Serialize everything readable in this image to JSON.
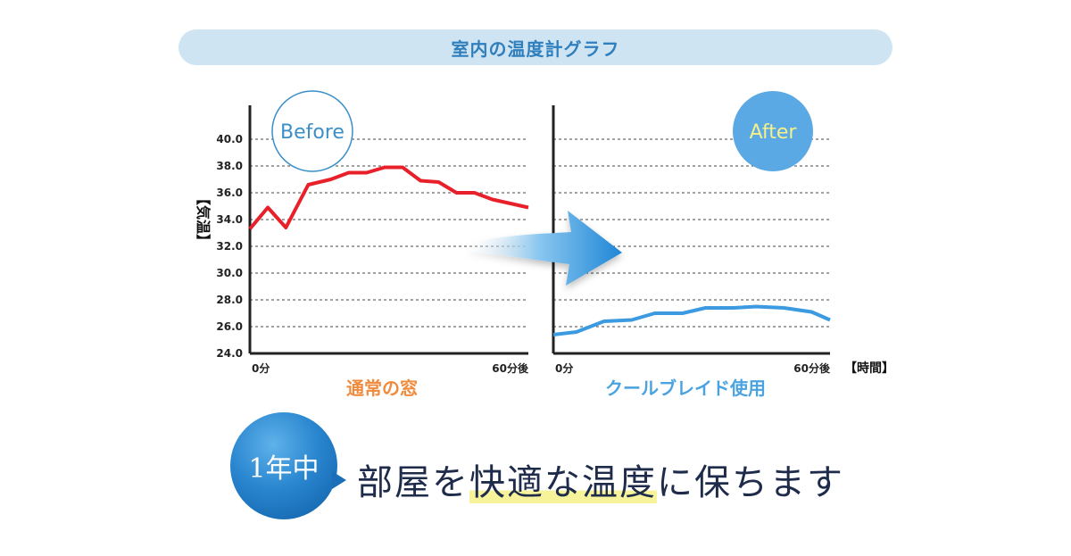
{
  "banner": {
    "title": "室内の温度計グラフ"
  },
  "chart_data": [
    {
      "type": "line",
      "badge": "Before",
      "caption": "通常の窓",
      "ylabel": "【気温】",
      "ylim": [
        24,
        42
      ],
      "yticks": [
        "24.0",
        "26.0",
        "28.0",
        "30.0",
        "32.0",
        "34.0",
        "36.0",
        "38.0",
        "40.0"
      ],
      "xticks": [
        "0分",
        "60分後"
      ],
      "grid": true,
      "series": [
        {
          "color": "#e8202a",
          "x": [
            0,
            4,
            8,
            13,
            18,
            22,
            26,
            30,
            34,
            38,
            42,
            46,
            50,
            54,
            58,
            62
          ],
          "y": [
            33.3,
            34.9,
            33.4,
            36.6,
            37.0,
            37.5,
            37.5,
            37.9,
            37.9,
            36.9,
            36.8,
            36.0,
            36.0,
            35.5,
            35.2,
            34.9
          ]
        }
      ]
    },
    {
      "type": "line",
      "badge": "After",
      "caption": "クールブレイド使用",
      "xunit": "【時間】",
      "ylim": [
        24,
        42
      ],
      "xticks": [
        "0分",
        "60分後"
      ],
      "grid": true,
      "series": [
        {
          "color": "#3b9ae0",
          "x": [
            0,
            5,
            11,
            17,
            22,
            28,
            33,
            39,
            44,
            50,
            56,
            60
          ],
          "y": [
            25.4,
            25.6,
            26.4,
            26.5,
            27.0,
            27.0,
            27.4,
            27.4,
            27.5,
            27.4,
            27.1,
            26.5
          ]
        }
      ]
    }
  ],
  "year_badge": "1年中",
  "tagline": {
    "before": "部屋を",
    "highlight": "快適な温度",
    "after": "に保ちます"
  }
}
